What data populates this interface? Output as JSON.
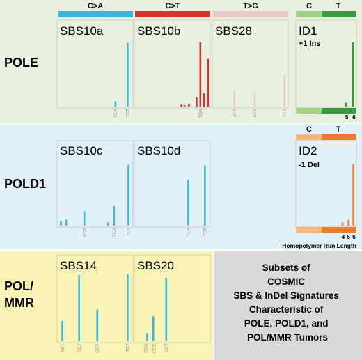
{
  "context_header": {
    "labels": [
      "C>A",
      "C>T",
      "T>G",
      "C",
      "T"
    ],
    "colors": {
      "ca": "#3ab7e0",
      "ct": "#d9342b",
      "tg": "#eec8c6",
      "c_ins": "#9fd282",
      "t_ins": "#3a9b3e"
    }
  },
  "rows": [
    {
      "label": "POLE",
      "color": "#e8f1e0"
    },
    {
      "label": "POLD1",
      "color": "#e2f0f8"
    },
    {
      "label": "POL/\nMMR",
      "color": "#faf3b6"
    }
  ],
  "chart_data": [
    {
      "type": "bar",
      "title": "SBS10a",
      "ylim": [
        0,
        1
      ],
      "bars": [
        {
          "x": 0.77,
          "y": 0.08,
          "color": "#3ab7e0"
        },
        {
          "x": 0.93,
          "y": 0.96,
          "color": "#3ab7e0"
        }
      ],
      "ticks": [
        {
          "x": 0.77,
          "text": "TCA"
        },
        {
          "x": 0.93,
          "text": "TCT"
        }
      ]
    },
    {
      "type": "bar",
      "title": "SBS10b",
      "ylim": [
        0,
        1
      ],
      "bars": [
        {
          "x": 0.62,
          "y": 0.03,
          "color": "#d9342b"
        },
        {
          "x": 0.66,
          "y": 0.02,
          "color": "#d9342b"
        },
        {
          "x": 0.72,
          "y": 0.04,
          "color": "#d9342b"
        },
        {
          "x": 0.82,
          "y": 0.14,
          "color": "#d9342b"
        },
        {
          "x": 0.87,
          "y": 0.97,
          "color": "#d9342b"
        },
        {
          "x": 0.92,
          "y": 0.2,
          "color": "#d9342b"
        },
        {
          "x": 0.97,
          "y": 0.72,
          "color": "#d9342b"
        }
      ],
      "ticks": [
        {
          "x": 0.87,
          "text": "TCG"
        }
      ]
    },
    {
      "type": "bar",
      "title": "SBS28",
      "ylim": [
        0,
        1
      ],
      "bars": [
        {
          "x": 0.29,
          "y": 0.24,
          "color": "#eec8c6"
        },
        {
          "x": 0.56,
          "y": 0.22,
          "color": "#eec8c6"
        },
        {
          "x": 0.95,
          "y": 0.48,
          "color": "#eec8c6"
        }
      ],
      "ticks": [
        {
          "x": 0.29,
          "text": "ATT"
        },
        {
          "x": 0.56,
          "text": "CTT"
        },
        {
          "x": 0.95,
          "text": "TTT"
        }
      ]
    },
    {
      "type": "bar",
      "title": "ID1",
      "subtitle": "+1 Ins",
      "ylim": [
        0,
        1
      ],
      "bars": [
        {
          "x": 0.83,
          "y": 0.06,
          "color": "#3a9b3e"
        },
        {
          "x": 0.94,
          "y": 0.97,
          "color": "#3a9b3e"
        }
      ],
      "ticks": [
        {
          "x": 0.84,
          "text": "5"
        },
        {
          "x": 0.96,
          "text": "6"
        }
      ]
    },
    {
      "type": "bar",
      "title": "SBS10c",
      "ylim": [
        0,
        1
      ],
      "bars": [
        {
          "x": 0.05,
          "y": 0.07,
          "color": "#3ab7e0"
        },
        {
          "x": 0.12,
          "y": 0.09,
          "color": "#3ab7e0"
        },
        {
          "x": 0.36,
          "y": 0.22,
          "color": "#3ab7e0"
        },
        {
          "x": 0.67,
          "y": 0.05,
          "color": "#3ab7e0"
        },
        {
          "x": 0.75,
          "y": 0.3,
          "color": "#3ab7e0"
        },
        {
          "x": 0.94,
          "y": 0.93,
          "color": "#3ab7e0"
        }
      ],
      "ticks": [
        {
          "x": 0.36,
          "text": "CCT"
        },
        {
          "x": 0.75,
          "text": "TCA"
        },
        {
          "x": 0.94,
          "text": "TCT"
        }
      ]
    },
    {
      "type": "bar",
      "title": "SBS10d",
      "ylim": [
        0,
        1
      ],
      "bars": [
        {
          "x": 0.71,
          "y": 0.7,
          "color": "#3ab7e0"
        },
        {
          "x": 0.93,
          "y": 0.92,
          "color": "#3ab7e0"
        }
      ],
      "ticks": [
        {
          "x": 0.71,
          "text": "TCA"
        },
        {
          "x": 0.93,
          "text": "TCT"
        }
      ]
    },
    {
      "type": "bar",
      "title": "ID2",
      "subtitle": "-1 Del",
      "ylim": [
        0,
        1
      ],
      "bars": [
        {
          "x": 0.77,
          "y": 0.05,
          "color": "#ed7d2e"
        },
        {
          "x": 0.87,
          "y": 0.09,
          "color": "#ed7d2e"
        },
        {
          "x": 0.95,
          "y": 0.96,
          "color": "#ed7d2e"
        }
      ],
      "ticks": [
        {
          "x": 0.78,
          "text": "4"
        },
        {
          "x": 0.87,
          "text": "5"
        },
        {
          "x": 0.96,
          "text": "6"
        }
      ]
    },
    {
      "type": "bar",
      "title": "SBS14",
      "ylim": [
        0,
        1
      ],
      "bars": [
        {
          "x": 0.07,
          "y": 0.3,
          "color": "#3ab7e0"
        },
        {
          "x": 0.29,
          "y": 0.98,
          "color": "#3ab7e0"
        },
        {
          "x": 0.53,
          "y": 0.47,
          "color": "#3ab7e0"
        },
        {
          "x": 0.93,
          "y": 0.99,
          "color": "#3ab7e0"
        }
      ],
      "ticks": [
        {
          "x": 0.07,
          "text": "ACT"
        },
        {
          "x": 0.29,
          "text": "CCT"
        },
        {
          "x": 0.53,
          "text": "GCT"
        },
        {
          "x": 0.93,
          "text": "TCT"
        }
      ]
    },
    {
      "type": "bar",
      "title": "SBS20",
      "ylim": [
        0,
        1
      ],
      "bars": [
        {
          "x": 0.17,
          "y": 0.12,
          "color": "#3ab7e0"
        },
        {
          "x": 0.25,
          "y": 0.37,
          "color": "#3ab7e0"
        },
        {
          "x": 0.42,
          "y": 0.94,
          "color": "#3ab7e0"
        }
      ],
      "ticks": [
        {
          "x": 0.15,
          "text": "CCA"
        },
        {
          "x": 0.26,
          "text": "CCC"
        },
        {
          "x": 0.42,
          "text": "CCT"
        }
      ]
    }
  ],
  "id_headers": [
    {
      "labels": [
        "C",
        "T"
      ],
      "colors": [
        "#9fd282",
        "#3a9b3e"
      ]
    },
    {
      "labels": [
        "C",
        "T"
      ],
      "colors": [
        "#f5b67a",
        "#ed7d2e"
      ]
    }
  ],
  "footer_label": "Homopolymer Run Length",
  "caption": {
    "lines": [
      "Subsets of",
      "COSMIC",
      "SBS & InDel Signatures",
      "Characteristic of",
      "POLE, POLD1, and",
      "POL/MMR Tumors"
    ],
    "color": "#d9d9d9"
  }
}
